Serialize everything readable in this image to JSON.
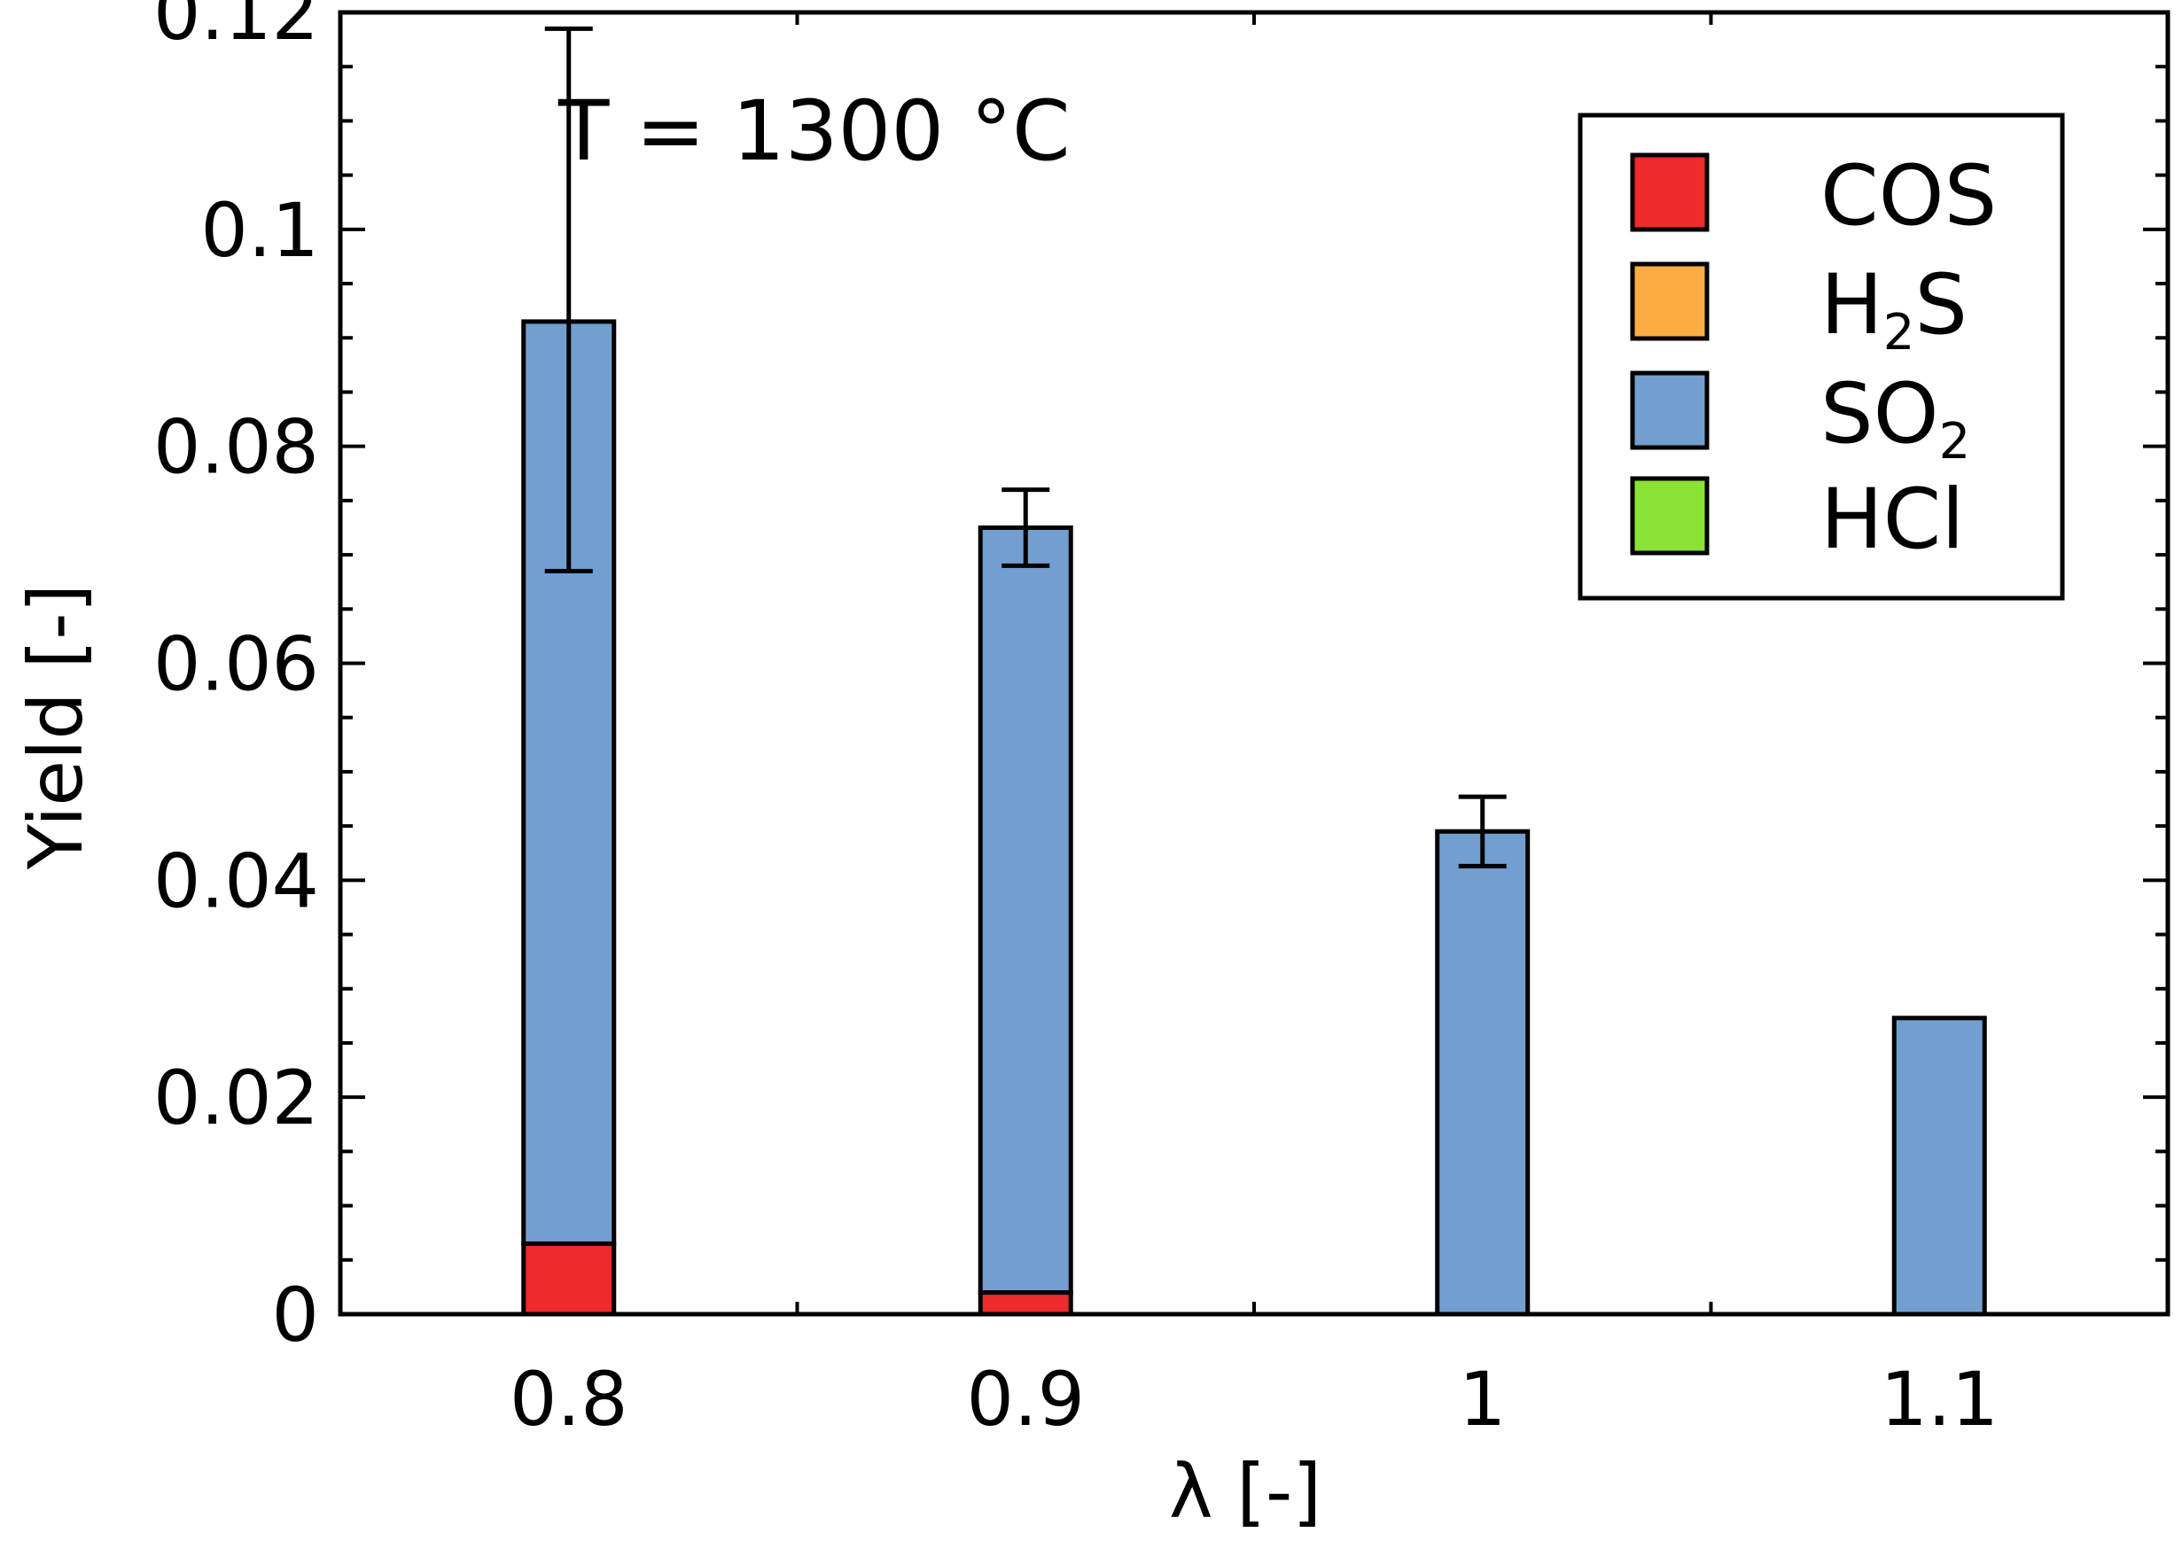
{
  "chart_data": {
    "type": "bar",
    "stacked": true,
    "annotation": "T = 1300 °C",
    "xlabel": "λ [-]",
    "ylabel": "Yield [-]",
    "categories": [
      "0.8",
      "0.9",
      "1",
      "1.1"
    ],
    "ylim": [
      0,
      0.12
    ],
    "yticks": [
      "0",
      "0.02",
      "0.04",
      "0.06",
      "0.08",
      "0.1",
      "0.12"
    ],
    "series": [
      {
        "name": "COS",
        "name_main": "COS",
        "name_sub": "",
        "name_tail": "",
        "color": "#ee2a2a",
        "values": [
          0.0065,
          0.002,
          0,
          0
        ]
      },
      {
        "name": "H2S",
        "name_main": "H",
        "name_sub": "2",
        "name_tail": "S",
        "color": "#fbad43",
        "values": [
          0,
          0,
          0,
          0
        ]
      },
      {
        "name": "SO2",
        "name_main": "SO",
        "name_sub": "2",
        "name_tail": "",
        "color": "#729fcf",
        "values": [
          0.085,
          0.0705,
          0.0445,
          0.0273
        ]
      },
      {
        "name": "HCl",
        "name_main": "HCl",
        "name_sub": "",
        "name_tail": "",
        "color": "#8ae234",
        "values": [
          0,
          0,
          0,
          0
        ]
      }
    ],
    "error_bars": [
      {
        "category": "0.8",
        "low": 0.0685,
        "high": 0.1185
      },
      {
        "category": "0.9",
        "low": 0.069,
        "high": 0.076
      },
      {
        "category": "1",
        "low": 0.0413,
        "high": 0.0477
      },
      {
        "category": "1.1",
        "low": null,
        "high": null
      }
    ],
    "legend_position": "top-right",
    "grid": false
  }
}
